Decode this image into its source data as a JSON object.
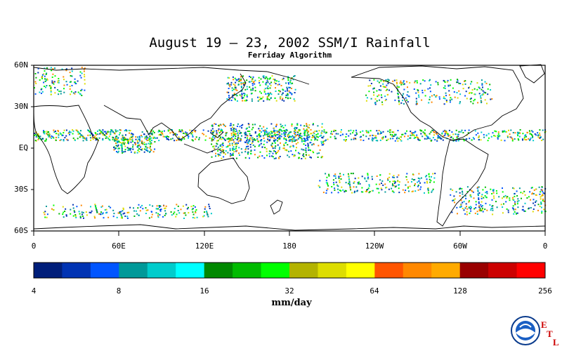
{
  "title": "August 19 – 23, 2002 SSM/I Rainfall",
  "subtitle": "Ferriday Algorithm",
  "lat_labels": [
    "60N",
    "30N",
    "EQ",
    "30S",
    "60S"
  ],
  "lon_labels": [
    "0",
    "60E",
    "120E",
    "180",
    "120W",
    "60W",
    "0"
  ],
  "colorbar": {
    "colors": [
      "#001e7a",
      "#0033b3",
      "#0055ff",
      "#009999",
      "#00cccc",
      "#00ffff",
      "#008800",
      "#00bb00",
      "#00ff00",
      "#b3b300",
      "#dddd00",
      "#ffff00",
      "#ff5500",
      "#ff8800",
      "#ffaa00",
      "#990000",
      "#cc0000",
      "#ff0000"
    ],
    "tick_labels": [
      "4",
      "8",
      "16",
      "32",
      "64",
      "128",
      "256"
    ],
    "units": "mm/day"
  },
  "logo": {
    "name": "NOAA",
    "etl_letters": [
      "E",
      "T",
      "L"
    ]
  }
}
